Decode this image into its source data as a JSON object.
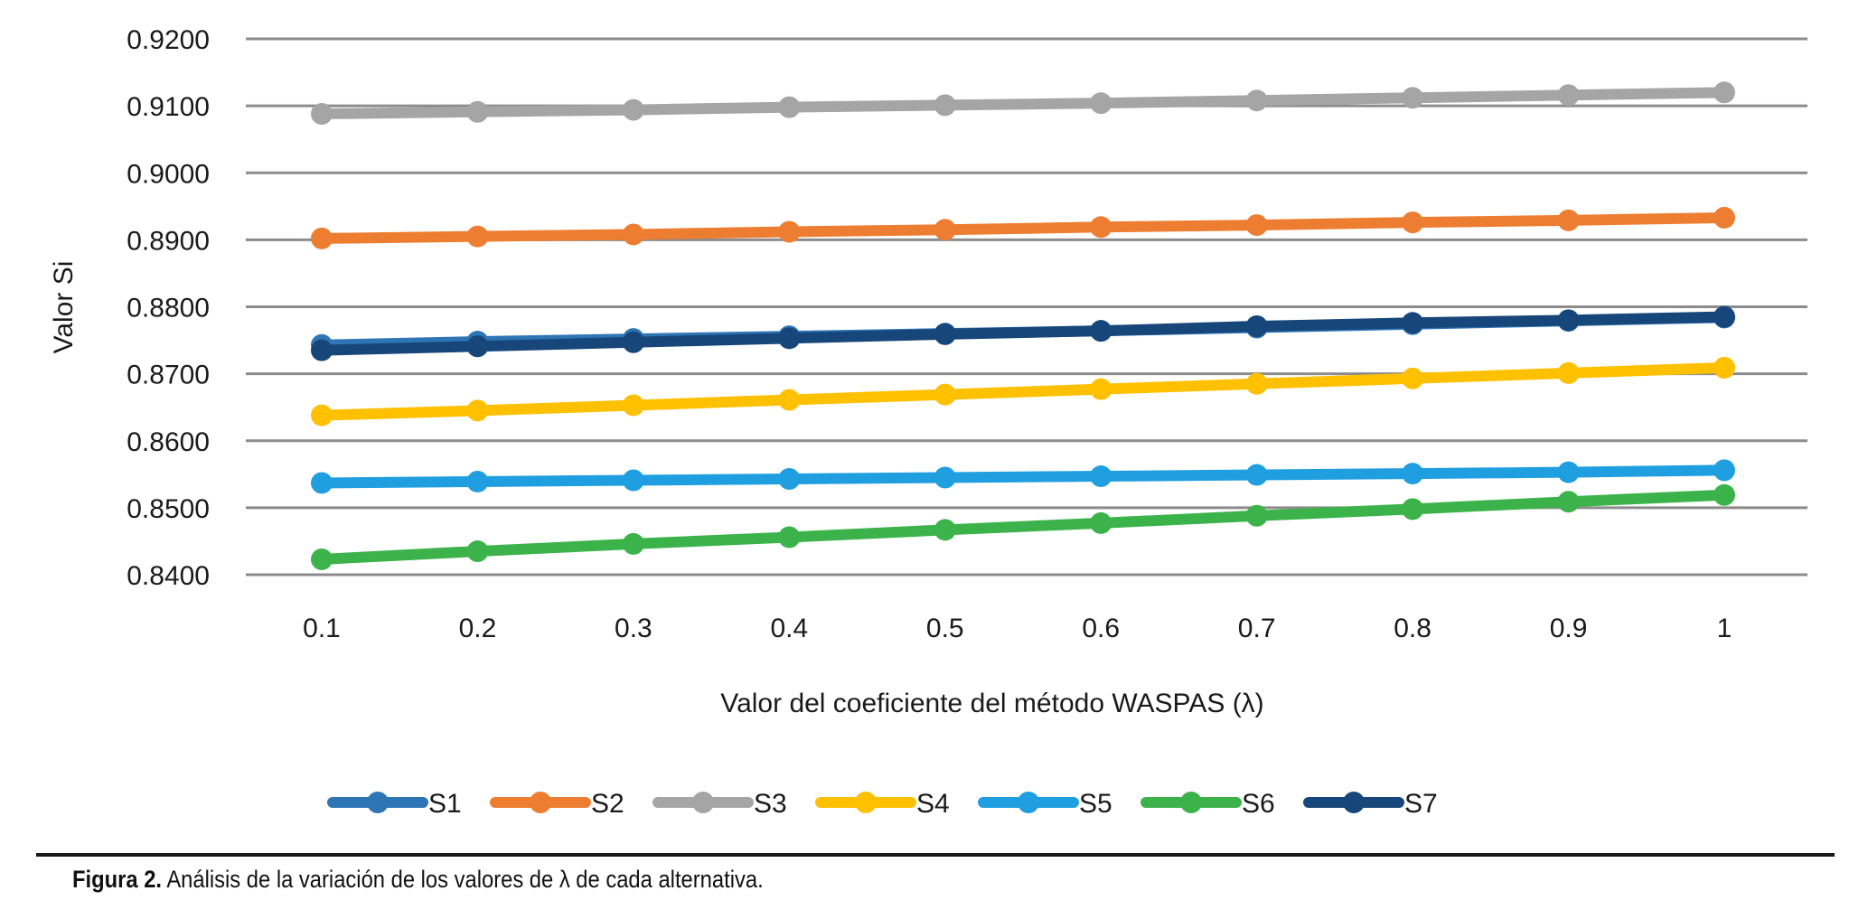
{
  "chart_data": {
    "type": "line",
    "title": "",
    "xlabel": "Valor del coeficiente del método WASPAS (λ)",
    "ylabel": "Valor Si",
    "x": [
      "0.1",
      "0.2",
      "0.3",
      "0.4",
      "0.5",
      "0.6",
      "0.7",
      "0.8",
      "0.9",
      "1"
    ],
    "ylim": [
      0.84,
      0.92
    ],
    "yticks": [
      "0.8400",
      "0.8500",
      "0.8600",
      "0.8700",
      "0.8800",
      "0.8900",
      "0.9000",
      "0.9100",
      "0.9200"
    ],
    "grid": true,
    "legend_position": "bottom",
    "series": [
      {
        "name": "S1",
        "color": "#2e75b6",
        "values": [
          0.8743,
          0.8748,
          0.8752,
          0.8756,
          0.876,
          0.8764,
          0.8769,
          0.8774,
          0.8779,
          0.8784
        ]
      },
      {
        "name": "S2",
        "color": "#ed7d31",
        "values": [
          0.8902,
          0.8905,
          0.8908,
          0.8912,
          0.8915,
          0.8919,
          0.8922,
          0.8926,
          0.8929,
          0.8933
        ]
      },
      {
        "name": "S3",
        "color": "#a5a5a5",
        "values": [
          0.9088,
          0.9091,
          0.9094,
          0.9098,
          0.9101,
          0.9104,
          0.9108,
          0.9112,
          0.9116,
          0.912
        ]
      },
      {
        "name": "S4",
        "color": "#ffc000",
        "values": [
          0.8638,
          0.8645,
          0.8653,
          0.8661,
          0.8669,
          0.8677,
          0.8685,
          0.8693,
          0.8701,
          0.8709
        ]
      },
      {
        "name": "S5",
        "color": "#1f9ee0",
        "values": [
          0.8537,
          0.8539,
          0.8541,
          0.8543,
          0.8545,
          0.8547,
          0.8549,
          0.8551,
          0.8553,
          0.8556
        ]
      },
      {
        "name": "S6",
        "color": "#3bb34a",
        "values": [
          0.8423,
          0.8435,
          0.8446,
          0.8456,
          0.8467,
          0.8477,
          0.8488,
          0.8498,
          0.8509,
          0.8519
        ]
      },
      {
        "name": "S7",
        "color": "#17467a",
        "values": [
          0.8735,
          0.8741,
          0.8747,
          0.8753,
          0.8759,
          0.8764,
          0.8771,
          0.8776,
          0.878,
          0.8785
        ]
      }
    ]
  },
  "caption": {
    "label": "Figura 2.",
    "text": " Análisis de la variación de los valores de λ de cada alternativa."
  }
}
